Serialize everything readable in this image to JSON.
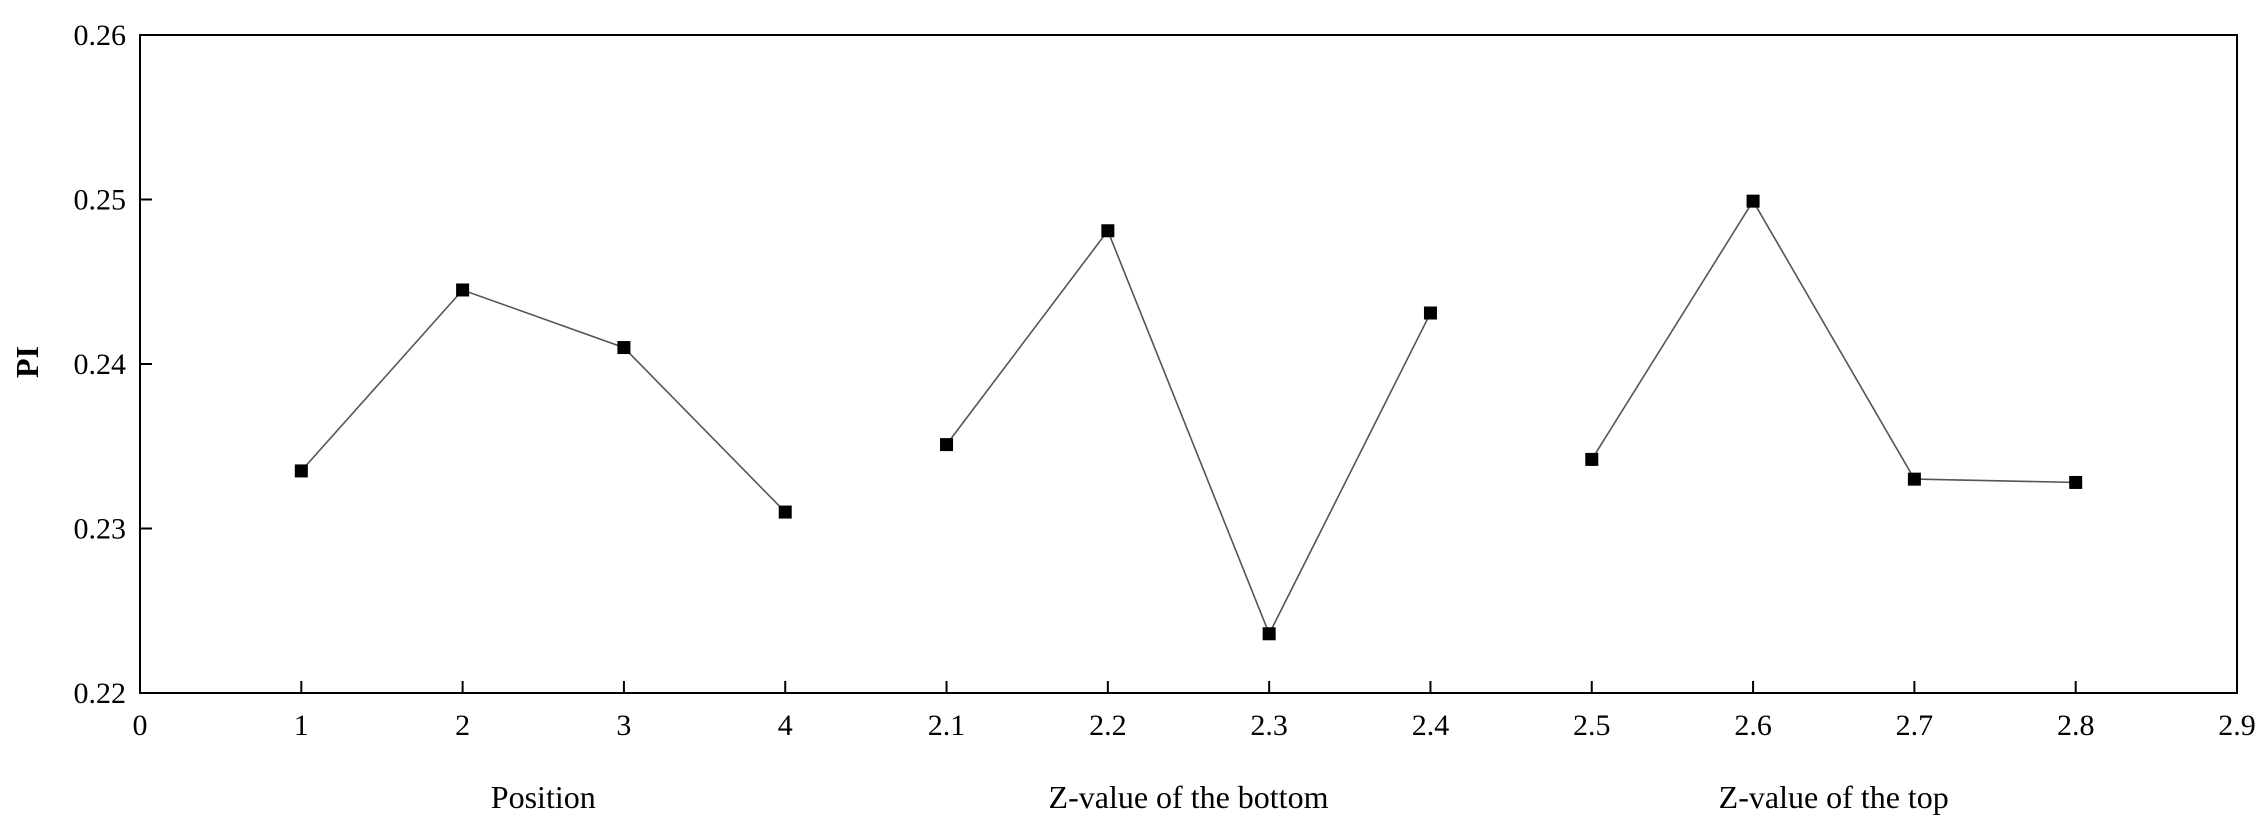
{
  "chart_data": {
    "type": "line",
    "title": "",
    "ylabel": "PI",
    "ylim": [
      0.22,
      0.26
    ],
    "yticks": [
      "0.22",
      "0.23",
      "0.24",
      "0.25",
      "0.26"
    ],
    "xlim": [
      0,
      13
    ],
    "xticks": [
      "0",
      "1",
      "2",
      "3",
      "4",
      "2.1",
      "2.2",
      "2.3",
      "2.4",
      "2.5",
      "2.6",
      "2.7",
      "2.8",
      "2.9"
    ],
    "group_labels": [
      "Position",
      "Z-value of the bottom",
      "Z-value of the top"
    ],
    "grid": false,
    "legend": "none",
    "series": [
      {
        "group": "Position",
        "x": [
          1,
          2,
          3,
          4
        ],
        "y": [
          0.2335,
          0.2445,
          0.241,
          0.231
        ]
      },
      {
        "group": "Z-value of the bottom",
        "x": [
          2.1,
          2.2,
          2.3,
          2.4
        ],
        "y": [
          0.2351,
          0.2481,
          0.2236,
          0.2431
        ]
      },
      {
        "group": "Z-value of the top",
        "x": [
          2.5,
          2.6,
          2.7,
          2.8
        ],
        "y": [
          0.2342,
          0.2499,
          0.233,
          0.2328
        ]
      }
    ],
    "colors": {
      "line": "#555555",
      "marker": "#000000",
      "axis": "#000000"
    }
  }
}
